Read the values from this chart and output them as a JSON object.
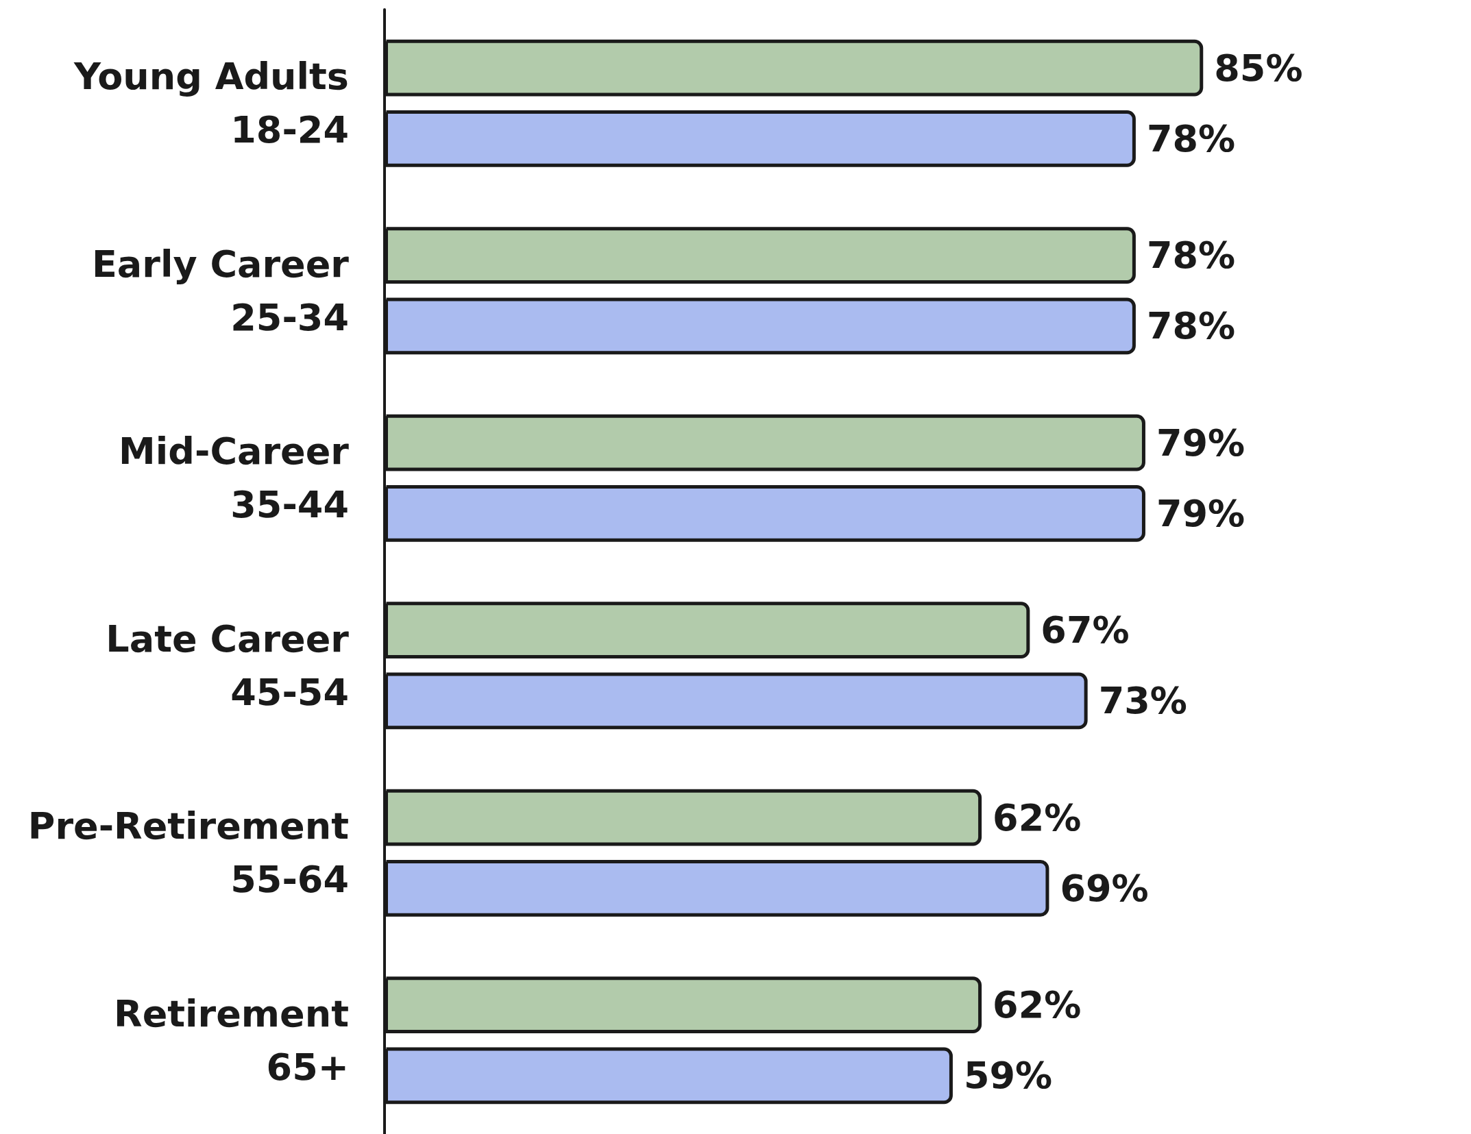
{
  "chart_data": {
    "type": "bar",
    "orientation": "horizontal",
    "categories": [
      "Young Adults\n18-24",
      "Early Career\n25-34",
      "Mid-Career\n35-44",
      "Late Career\n45-54",
      "Pre-Retirement\n55-64",
      "Retirement\n65+"
    ],
    "series": [
      {
        "color": "#b2cbab",
        "values": [
          85,
          78,
          79,
          67,
          62,
          62
        ],
        "value_labels": [
          "85%",
          "78%",
          "79%",
          "67%",
          "62%",
          "62%"
        ]
      },
      {
        "color": "#aabbf0",
        "values": [
          78,
          78,
          79,
          73,
          69,
          59
        ],
        "value_labels": [
          "78%",
          "78%",
          "79%",
          "73%",
          "69%",
          "59%"
        ]
      }
    ],
    "tick_labels": "y",
    "grid": false
  }
}
